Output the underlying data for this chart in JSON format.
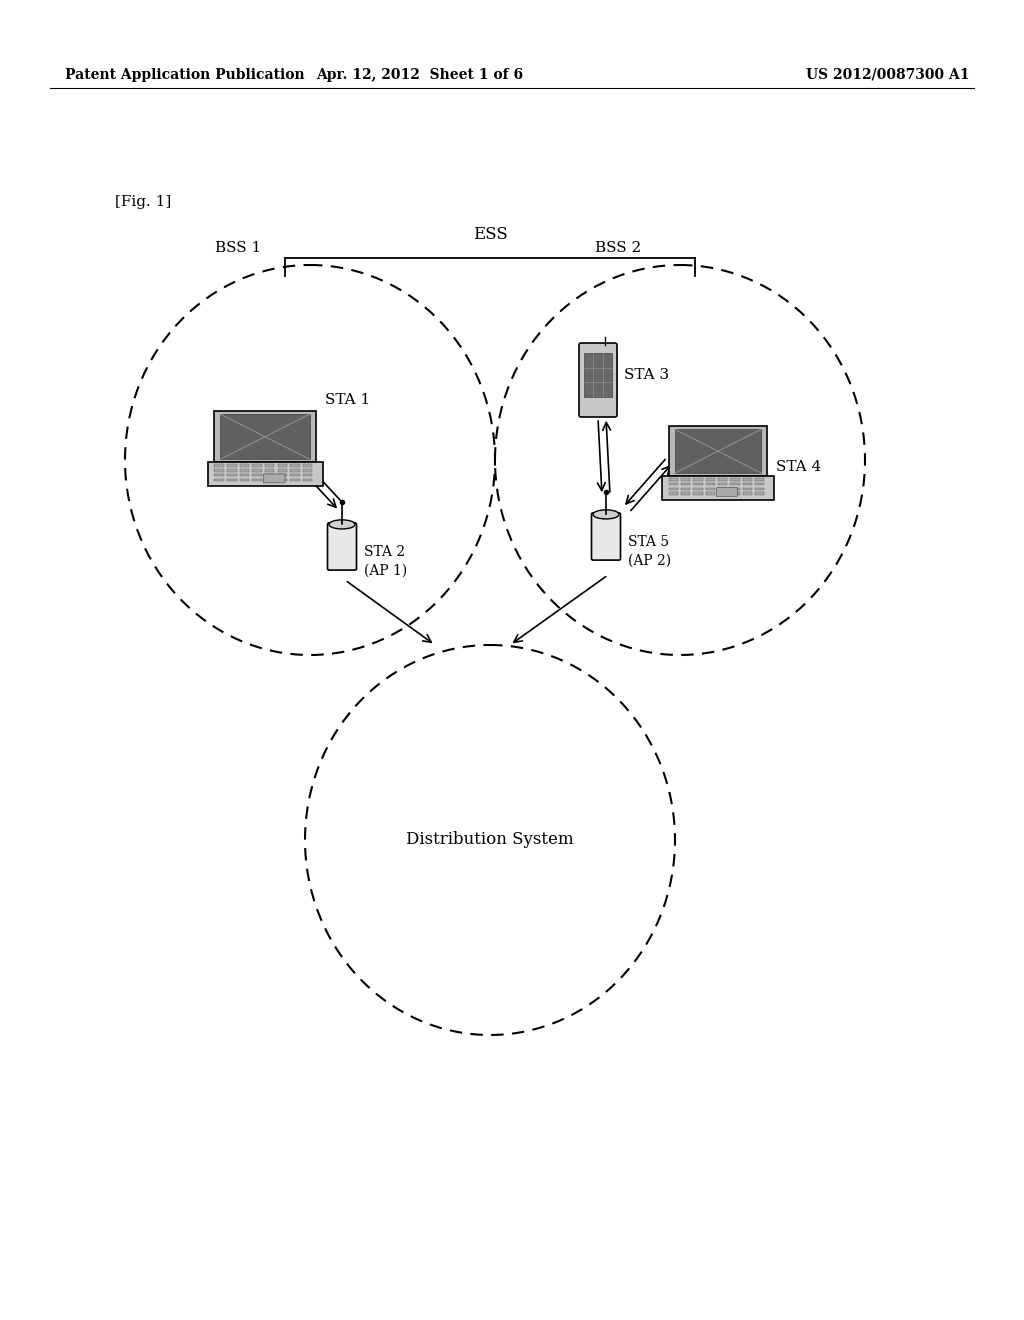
{
  "background_color": "#ffffff",
  "header_left": "Patent Application Publication",
  "header_center": "Apr. 12, 2012  Sheet 1 of 6",
  "header_right": "US 2012/0087300 A1",
  "fig_label": "[Fig. 1]",
  "ess_label": "ESS",
  "bss1_label": "BSS 1",
  "bss2_label": "BSS 2",
  "sta1_label": "STA 1",
  "sta2_label": "STA 2\n(AP 1)",
  "sta3_label": "STA 3",
  "sta4_label": "STA 4",
  "sta5_label": "STA 5\n(AP 2)",
  "ds_label": "Distribution System",
  "text_color": "#000000"
}
